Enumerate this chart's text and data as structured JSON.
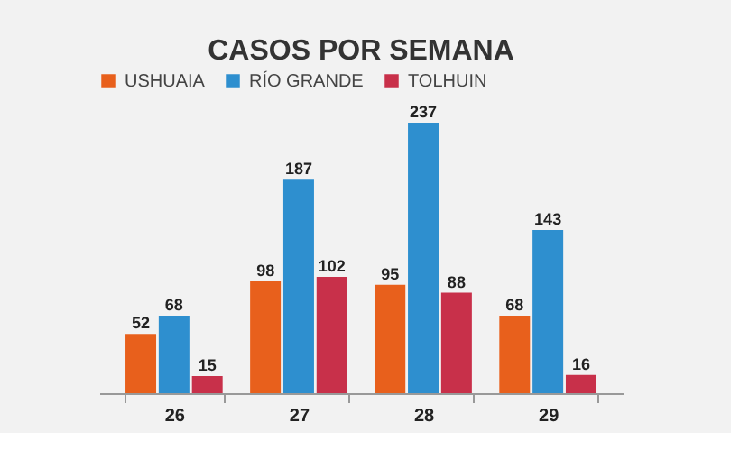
{
  "chart_data": {
    "type": "bar",
    "title": "CASOS POR SEMANA",
    "categories": [
      "26",
      "27",
      "28",
      "29"
    ],
    "series": [
      {
        "name": "USHUAIA",
        "color": "#e8601c",
        "values": [
          52,
          98,
          95,
          68
        ]
      },
      {
        "name": "RÍO GRANDE",
        "color": "#2e8fcf",
        "values": [
          68,
          187,
          237,
          143
        ]
      },
      {
        "name": "TOLHUIN",
        "color": "#c8304a",
        "values": [
          15,
          102,
          88,
          16
        ]
      }
    ],
    "data_labels": true,
    "legend": "top",
    "grid": false
  }
}
